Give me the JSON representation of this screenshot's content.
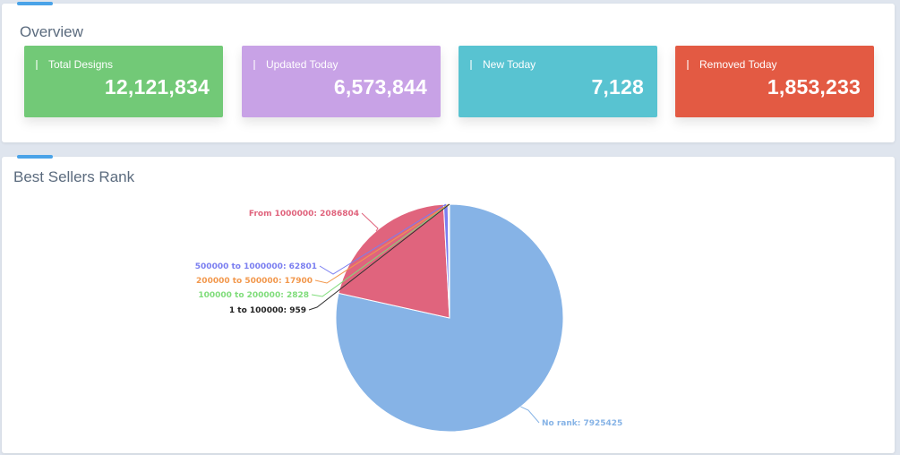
{
  "overview": {
    "title": "Overview",
    "cards": [
      {
        "label": "Total Designs",
        "value": "12,121,834",
        "color": "#72c977"
      },
      {
        "label": "Updated Today",
        "value": "6,573,844",
        "color": "#c8a2e6"
      },
      {
        "label": "New Today",
        "value": "7,128",
        "color": "#58c3d1"
      },
      {
        "label": "Removed Today",
        "value": "1,853,233",
        "color": "#e35a43"
      }
    ]
  },
  "best_sellers": {
    "title": "Best Sellers Rank"
  },
  "chart_data": {
    "type": "pie",
    "title": "",
    "slices": [
      {
        "label": "No rank",
        "value": 7925425,
        "color": "#86b3e6",
        "text": "No rank: 7925425"
      },
      {
        "label": "From 1000000",
        "value": 2086804,
        "color": "#e0647d",
        "text": "From 1000000: 2086804"
      },
      {
        "label": "500000 to 1000000",
        "value": 62801,
        "color": "#7a7ef0",
        "text": "500000 to 1000000: 62801"
      },
      {
        "label": "200000 to 500000",
        "value": 17900,
        "color": "#f2984d",
        "text": "200000 to 500000: 17900"
      },
      {
        "label": "100000 to 200000",
        "value": 2828,
        "color": "#7fdc7a",
        "text": "100000 to 200000: 2828"
      },
      {
        "label": "1 to 100000",
        "value": 959,
        "color": "#333333",
        "text": "1 to 100000: 959"
      }
    ]
  }
}
